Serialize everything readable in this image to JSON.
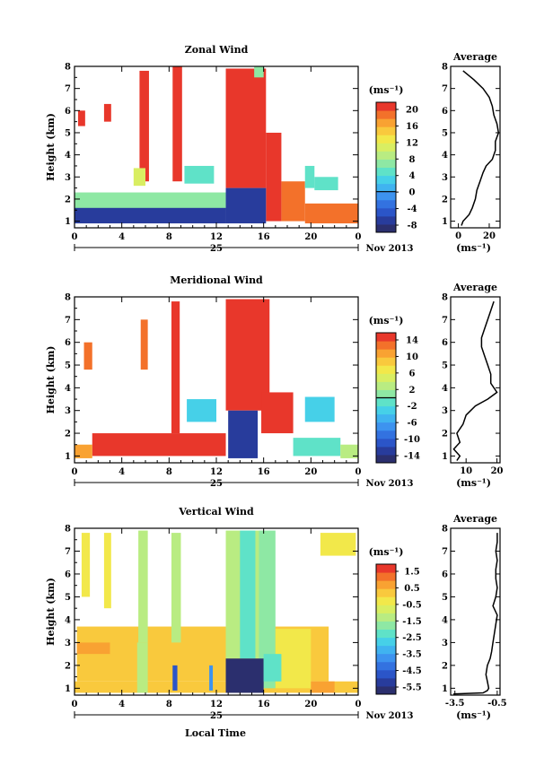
{
  "chart_data": [
    {
      "type": "heatmap",
      "title": "Zonal Wind",
      "xlabel": "",
      "ylabel": "Height (km)",
      "xlim": [
        0,
        24
      ],
      "ylim": [
        0.7,
        8
      ],
      "xticks": [
        "0",
        "4",
        "8",
        "12",
        "16",
        "20",
        "0"
      ],
      "yticks": [
        "1",
        "2",
        "3",
        "4",
        "5",
        "6",
        "7",
        "8"
      ],
      "date_day": "25",
      "date_month": "Nov 2013",
      "colorbar": {
        "unit": "(ms⁻¹)",
        "ticks": [
          "20",
          "16",
          "12",
          "8",
          "4",
          "0",
          "-4",
          "-8"
        ],
        "min": -10,
        "max": 22,
        "zero_line": 0
      },
      "regions": [
        {
          "t0": 2.5,
          "t1": 3.1,
          "h0": 5.5,
          "h1": 6.3,
          "v": 21
        },
        {
          "t0": 0.3,
          "t1": 0.9,
          "h0": 5.3,
          "h1": 6.0,
          "v": 21
        },
        {
          "t0": 5.5,
          "t1": 6.3,
          "h0": 2.8,
          "h1": 7.8,
          "v": 21
        },
        {
          "t0": 8.3,
          "t1": 9.1,
          "h0": 2.8,
          "h1": 8.0,
          "v": 21
        },
        {
          "t0": 5.0,
          "t1": 6.0,
          "h0": 2.6,
          "h1": 3.4,
          "v": 10
        },
        {
          "t0": 9.3,
          "t1": 11.8,
          "h0": 2.7,
          "h1": 3.5,
          "v": 4
        },
        {
          "t0": 12.8,
          "t1": 16.2,
          "h0": 2.5,
          "h1": 7.9,
          "v": 21
        },
        {
          "t0": 16.2,
          "t1": 17.5,
          "h0": 1.0,
          "h1": 5.0,
          "v": 21
        },
        {
          "t0": 17.5,
          "t1": 19.5,
          "h0": 1.0,
          "h1": 2.8,
          "v": 18
        },
        {
          "t0": 15.2,
          "t1": 16.0,
          "h0": 7.5,
          "h1": 8.0,
          "v": 6
        },
        {
          "t0": 19.5,
          "t1": 20.3,
          "h0": 2.5,
          "h1": 3.5,
          "v": 4
        },
        {
          "t0": 20.3,
          "t1": 22.3,
          "h0": 2.4,
          "h1": 3.0,
          "v": 4
        },
        {
          "t0": 0.0,
          "t1": 12.8,
          "h0": 1.5,
          "h1": 2.3,
          "v": 6
        },
        {
          "t0": 0.0,
          "t1": 12.8,
          "h0": 0.9,
          "h1": 1.6,
          "v": -7
        },
        {
          "t0": 12.8,
          "t1": 16.2,
          "h0": 0.9,
          "h1": 2.5,
          "v": -8
        },
        {
          "t0": 19.5,
          "t1": 24.0,
          "h0": 0.9,
          "h1": 1.8,
          "v": 18
        }
      ],
      "average": {
        "title": "Average",
        "xlabel": "(ms⁻¹)",
        "xlim": [
          -5,
          27
        ],
        "xticks": [
          "0",
          "20"
        ],
        "heights": [
          0.8,
          1.0,
          1.3,
          1.6,
          2.0,
          2.4,
          2.8,
          3.2,
          3.5,
          3.8,
          4.2,
          4.6,
          5.0,
          5.4,
          5.8,
          6.2,
          6.6,
          7.0,
          7.4,
          7.8
        ],
        "values": [
          2,
          3,
          7,
          9,
          11,
          12,
          14,
          16,
          18,
          22,
          24,
          24,
          26,
          25,
          23,
          22,
          20,
          16,
          10,
          3
        ]
      }
    },
    {
      "type": "heatmap",
      "title": "Meridional Wind",
      "xlabel": "",
      "ylabel": "Height (km)",
      "xlim": [
        0,
        24
      ],
      "ylim": [
        0.7,
        8
      ],
      "xticks": [
        "0",
        "4",
        "8",
        "12",
        "16",
        "20",
        "0"
      ],
      "yticks": [
        "1",
        "2",
        "3",
        "4",
        "5",
        "6",
        "7",
        "8"
      ],
      "date_day": "25",
      "date_month": "Nov 2013",
      "colorbar": {
        "unit": "(ms⁻¹)",
        "ticks": [
          "14",
          "10",
          "6",
          "2",
          "-2",
          "-6",
          "-10",
          "-14"
        ],
        "min": -16,
        "max": 16,
        "zero_line": 0
      },
      "regions": [
        {
          "t0": 0.8,
          "t1": 1.5,
          "h0": 4.8,
          "h1": 6.0,
          "v": 12
        },
        {
          "t0": 5.6,
          "t1": 6.2,
          "h0": 4.8,
          "h1": 7.0,
          "v": 12
        },
        {
          "t0": 8.2,
          "t1": 8.9,
          "h0": 2.0,
          "h1": 7.8,
          "v": 15
        },
        {
          "t0": 12.8,
          "t1": 16.5,
          "h0": 3.0,
          "h1": 7.9,
          "v": 15
        },
        {
          "t0": 15.8,
          "t1": 18.5,
          "h0": 2.0,
          "h1": 3.8,
          "v": 15
        },
        {
          "t0": 1.5,
          "t1": 12.8,
          "h0": 1.0,
          "h1": 2.0,
          "v": 15
        },
        {
          "t0": 0.0,
          "t1": 1.5,
          "h0": 0.9,
          "h1": 1.5,
          "v": 10
        },
        {
          "t0": 9.5,
          "t1": 12.0,
          "h0": 2.5,
          "h1": 3.5,
          "v": -3
        },
        {
          "t0": 13.0,
          "t1": 15.5,
          "h0": 0.9,
          "h1": 3.0,
          "v": -14
        },
        {
          "t0": 19.5,
          "t1": 22.0,
          "h0": 2.5,
          "h1": 3.6,
          "v": -3
        },
        {
          "t0": 18.5,
          "t1": 22.5,
          "h0": 1.0,
          "h1": 1.8,
          "v": -1
        },
        {
          "t0": 22.5,
          "t1": 24.0,
          "h0": 0.9,
          "h1": 1.5,
          "v": 2
        }
      ],
      "average": {
        "title": "Average",
        "xlabel": "(ms⁻¹)",
        "xlim": [
          5,
          21
        ],
        "xticks": [
          "10",
          "20"
        ],
        "heights": [
          0.8,
          1.0,
          1.3,
          1.6,
          2.0,
          2.4,
          2.8,
          3.2,
          3.5,
          3.8,
          4.2,
          4.6,
          5.0,
          5.4,
          5.8,
          6.2,
          6.6,
          7.0,
          7.4,
          7.8
        ],
        "values": [
          7,
          8,
          6,
          8,
          7,
          9,
          10,
          13,
          17,
          20,
          18,
          18,
          17,
          16,
          15,
          15,
          16,
          17,
          18,
          19
        ]
      }
    },
    {
      "type": "heatmap",
      "title": "Vertical Wind",
      "xlabel": "Local Time",
      "ylabel": "Height (km)",
      "xlim": [
        0,
        24
      ],
      "ylim": [
        0.7,
        8
      ],
      "xticks": [
        "0",
        "4",
        "8",
        "12",
        "16",
        "20",
        "0"
      ],
      "yticks": [
        "1",
        "2",
        "3",
        "4",
        "5",
        "6",
        "7",
        "8"
      ],
      "date_day": "25",
      "date_month": "Nov 2013",
      "colorbar": {
        "unit": "(ms⁻¹)",
        "ticks": [
          "1.5",
          "0.5",
          "-0.5",
          "-1.5",
          "-2.5",
          "-3.5",
          "-4.5",
          "-5.5"
        ],
        "min": -6,
        "max": 2,
        "zero_line": null
      },
      "regions": [
        {
          "t0": 0.0,
          "t1": 24.0,
          "h0": 0.8,
          "h1": 1.3,
          "v": 0.2
        },
        {
          "t0": 0.2,
          "t1": 21.5,
          "h0": 1.3,
          "h1": 3.7,
          "v": 0.2
        },
        {
          "t0": 0.6,
          "t1": 1.3,
          "h0": 5.0,
          "h1": 7.8,
          "v": -0.5
        },
        {
          "t0": 2.5,
          "t1": 3.1,
          "h0": 4.5,
          "h1": 7.8,
          "v": -0.5
        },
        {
          "t0": 5.4,
          "t1": 6.2,
          "h0": 3.0,
          "h1": 7.9,
          "v": -1.3
        },
        {
          "t0": 8.2,
          "t1": 9.0,
          "h0": 3.0,
          "h1": 7.8,
          "v": -1.5
        },
        {
          "t0": 12.8,
          "t1": 16.0,
          "h0": 2.3,
          "h1": 7.9,
          "v": -1.2
        },
        {
          "t0": 14.0,
          "t1": 15.3,
          "h0": 2.3,
          "h1": 7.9,
          "v": -2.2
        },
        {
          "t0": 15.6,
          "t1": 17.0,
          "h0": 1.0,
          "h1": 7.9,
          "v": -1.7
        },
        {
          "t0": 17.0,
          "t1": 20.0,
          "h0": 1.0,
          "h1": 3.6,
          "v": -0.5
        },
        {
          "t0": 5.3,
          "t1": 6.2,
          "h0": 0.8,
          "h1": 3.0,
          "v": -1.5
        },
        {
          "t0": 8.3,
          "t1": 8.7,
          "h0": 0.9,
          "h1": 2.0,
          "v": -5.0
        },
        {
          "t0": 11.4,
          "t1": 11.7,
          "h0": 0.9,
          "h1": 2.0,
          "v": -4.0
        },
        {
          "t0": 12.8,
          "t1": 16.0,
          "h0": 0.8,
          "h1": 2.3,
          "v": -5.8
        },
        {
          "t0": 16.0,
          "t1": 17.5,
          "h0": 1.3,
          "h1": 2.5,
          "v": -2.5
        },
        {
          "t0": 20.0,
          "t1": 22.0,
          "h0": 0.8,
          "h1": 1.3,
          "v": 0.8
        },
        {
          "t0": 0.2,
          "t1": 3.0,
          "h0": 2.5,
          "h1": 3.0,
          "v": 0.6
        },
        {
          "t0": 20.8,
          "t1": 23.8,
          "h0": 6.8,
          "h1": 7.8,
          "v": -0.3
        }
      ],
      "average": {
        "title": "Average",
        "xlabel": "(ms⁻¹)",
        "xlim": [
          -3.8,
          -0.3
        ],
        "xticks": [
          "-3.5",
          "-0.5"
        ],
        "heights": [
          0.75,
          0.8,
          0.9,
          1.0,
          1.3,
          1.6,
          2.0,
          2.3,
          2.6,
          3.0,
          3.4,
          3.8,
          4.2,
          4.6,
          5.0,
          5.4,
          5.8,
          6.2,
          6.6,
          7.0,
          7.4,
          7.8
        ],
        "values": [
          -3.6,
          -1.5,
          -1.2,
          -1.1,
          -1.2,
          -1.3,
          -1.2,
          -1.0,
          -0.9,
          -0.8,
          -0.7,
          -0.6,
          -0.5,
          -0.8,
          -0.6,
          -0.5,
          -0.6,
          -0.6,
          -0.5,
          -0.6,
          -0.5,
          -0.5
        ]
      }
    }
  ]
}
